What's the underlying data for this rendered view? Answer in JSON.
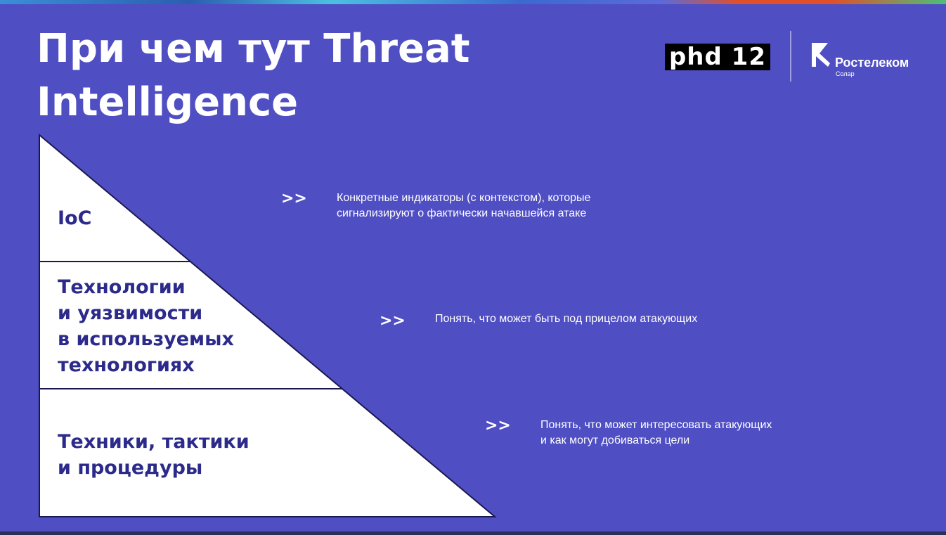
{
  "slide": {
    "title": "При чем тут Threat Intelligence",
    "logos": {
      "phd": "phd 12",
      "rostelecom_name": "Ростелеком",
      "rostelecom_sub": "Солар"
    },
    "levels": [
      {
        "label_lines": [
          "IoC"
        ],
        "arrow": ">>",
        "description_lines": [
          "Конкретные индикаторы (с контекстом), которые",
          "сигнализируют о фактически начавшейся атаке"
        ]
      },
      {
        "label_lines": [
          "Технологии",
          "и уязвимости",
          "в используемых",
          "технологиях"
        ],
        "arrow": ">>",
        "description_lines": [
          "Понять, что может быть под прицелом атакующих"
        ]
      },
      {
        "label_lines": [
          "Техники, тактики",
          "и процедуры"
        ],
        "arrow": ">>",
        "description_lines": [
          "Понять, что может интересовать атакующих",
          "и как могут добиваться цели"
        ]
      }
    ],
    "colors": {
      "background": "#4f4ec3",
      "pyramid_fill": "#ffffff",
      "pyramid_text": "#2c2a8a",
      "text": "#ffffff"
    }
  }
}
